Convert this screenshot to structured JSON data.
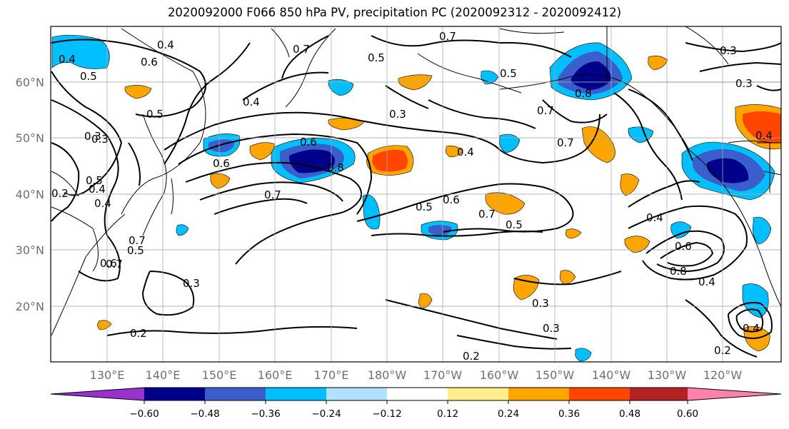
{
  "title": "2020092000 F066 850 hPa PV, precipitation PC (2020092312 - 2020092412)",
  "lat_labels": [
    "60°N",
    "50°N",
    "40°N",
    "30°N",
    "20°N"
  ],
  "lon_labels": [
    "130°E",
    "140°E",
    "150°E",
    "160°E",
    "170°E",
    "180°W",
    "170°W",
    "160°W",
    "150°W",
    "140°W",
    "130°W",
    "120°W"
  ],
  "colorbar": {
    "colors": [
      "#9932cc",
      "#00008b",
      "#3a5fcd",
      "#00bfff",
      "#b0e2ff",
      "#ffffff",
      "#ffec8b",
      "#ffa500",
      "#ff4500",
      "#b22222",
      "#ff82ab"
    ],
    "tick_labels": [
      "−0.60",
      "−0.48",
      "−0.36",
      "−0.24",
      "−0.12",
      "0.12",
      "0.24",
      "0.36",
      "0.48",
      "0.60"
    ]
  },
  "contour_labels": [
    "0.4",
    "0.6",
    "0.7",
    "0.7",
    "0.3",
    "0.4",
    "0.5",
    "0.5",
    "0.5",
    "0.3",
    "0.4",
    "0.5",
    "0.4",
    "0.6",
    "0.8",
    "0.7",
    "0.3",
    "0.4",
    "0.5",
    "0.6",
    "0.7",
    "0.5",
    "0.6",
    "0.7",
    "0.5",
    "0.7",
    "0.8",
    "0.7",
    "0.7",
    "0.4",
    "0.4",
    "0.6",
    "0.8",
    "0.4",
    "0.3",
    "0.3",
    "0.2",
    "0.3",
    "0.2",
    "0.2",
    "0.4",
    "0.2",
    "0.3",
    "0.3",
    "0.4",
    "0.6",
    "0.5"
  ]
}
